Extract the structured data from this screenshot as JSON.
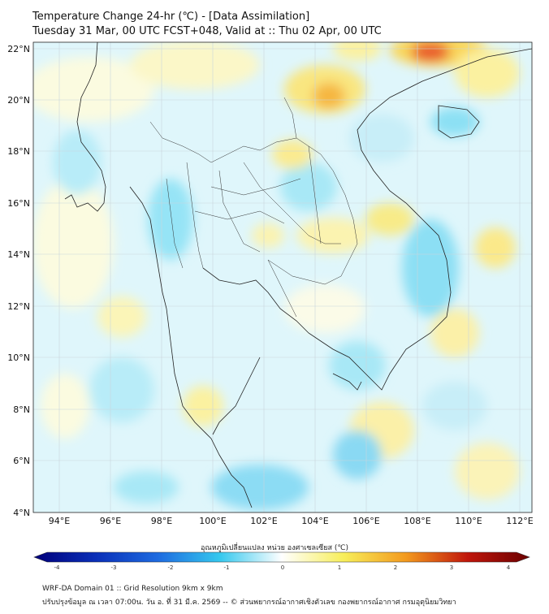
{
  "title": {
    "line1": "Temperature Change 24-hr (℃) - [Data Assimilation]",
    "line2": "Tuesday 31 Mar, 00 UTC FCST+048, Valid at :: Thu 02 Apr, 00 UTC"
  },
  "map": {
    "lon_range": [
      93,
      112.5
    ],
    "lat_range": [
      4,
      22.3
    ],
    "lat_ticks": [
      "22°N",
      "20°N",
      "18°N",
      "16°N",
      "14°N",
      "12°N",
      "10°N",
      "8°N",
      "6°N",
      "4°N"
    ],
    "lon_ticks": [
      "94°E",
      "96°E",
      "98°E",
      "100°E",
      "102°E",
      "104°E",
      "106°E",
      "108°E",
      "110°E",
      "112°E"
    ]
  },
  "colorbar": {
    "title": "อุณหภูมิเปลี่ยนแปลง หน่วย องศาเซลเซียส (℃)",
    "range": [
      -4,
      4
    ],
    "tick_labels": [
      "-4",
      "-3",
      "-2",
      "-1",
      "0",
      "1",
      "2",
      "3",
      "4"
    ],
    "colors": {
      "very_cold": "#00007a",
      "cold": "#1e6be0",
      "cool": "#35c8ee",
      "neutral": "#ffffff",
      "warm": "#f7ee5a",
      "hot": "#f39a1e",
      "very_hot": "#c0160b",
      "extreme": "#6a0000"
    }
  },
  "footer": {
    "line1": "WRF-DA Domain 01 :: Grid Resolution 9km x 9km",
    "line2": "ปรับปรุงข้อมูล ณ เวลา 07:00น. วัน อ. ที่ 31 มี.ค. 2569 -- © ส่วนพยากรณ์อากาศเชิงตัวเลข กองพยากรณ์อากาศ กรมอุตุนิยมวิทยา"
  }
}
